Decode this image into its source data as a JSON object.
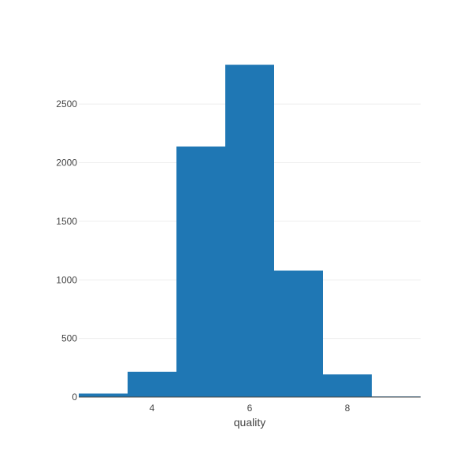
{
  "chart_data": {
    "type": "bar",
    "subtype": "histogram",
    "title": "",
    "xlabel": "quality",
    "ylabel": "",
    "x": [
      3,
      4,
      5,
      6,
      7,
      8,
      9
    ],
    "values": [
      30,
      216,
      2138,
      2836,
      1079,
      193,
      5
    ],
    "bin_width": 1,
    "xlim": [
      2.5,
      9.5
    ],
    "ylim": [
      0,
      2985
    ],
    "x_ticks": [
      4,
      6,
      8
    ],
    "y_ticks": [
      0,
      500,
      1000,
      1500,
      2000,
      2500
    ],
    "grid": "horizontal",
    "legend": "none",
    "colors": {
      "bar": "#1f77b4",
      "grid": "#eeeeee",
      "text": "#444444"
    }
  }
}
